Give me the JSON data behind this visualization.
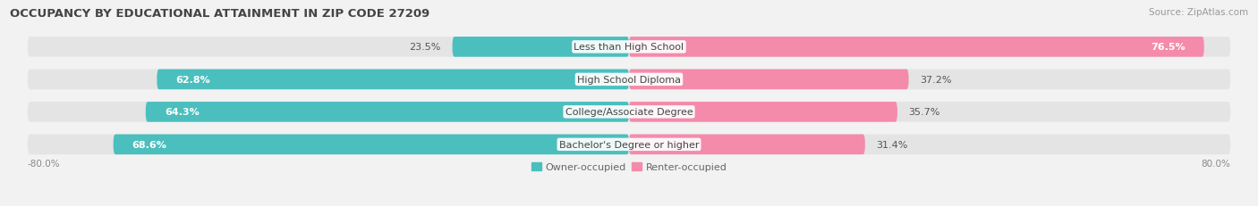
{
  "title": "OCCUPANCY BY EDUCATIONAL ATTAINMENT IN ZIP CODE 27209",
  "source": "Source: ZipAtlas.com",
  "categories": [
    "Less than High School",
    "High School Diploma",
    "College/Associate Degree",
    "Bachelor's Degree or higher"
  ],
  "owner_values": [
    23.5,
    62.8,
    64.3,
    68.6
  ],
  "renter_values": [
    76.5,
    37.2,
    35.7,
    31.4
  ],
  "owner_color": "#4BBFBE",
  "renter_color": "#F48BAB",
  "background_color": "#f2f2f2",
  "bar_bg_color": "#e4e4e4",
  "title_fontsize": 9.5,
  "label_fontsize": 8,
  "value_fontsize": 8,
  "tick_fontsize": 7.5,
  "legend_fontsize": 8,
  "x_max": 80.0,
  "bar_height": 0.62,
  "bar_gap": 1.0
}
